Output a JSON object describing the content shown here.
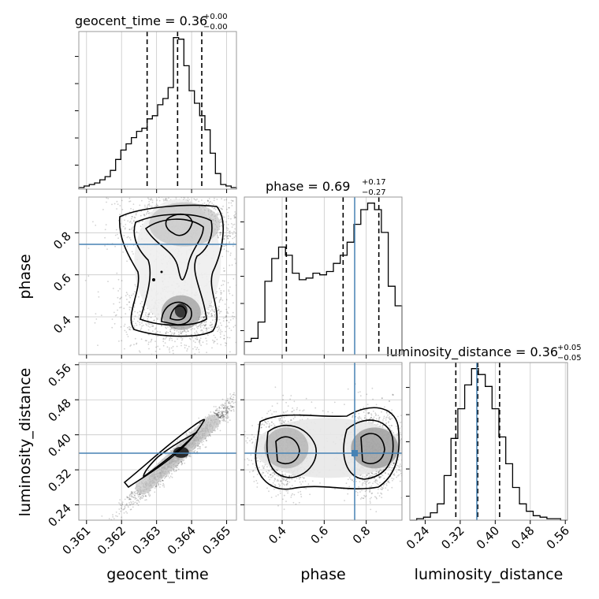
{
  "chart_data": {
    "type": "corner",
    "parameters": [
      "geocent_time",
      "phase",
      "luminosity_distance"
    ],
    "truth": {
      "phase": 0.745,
      "luminosity_distance": 0.358
    },
    "truth_color": "#4682b4",
    "axes": {
      "geocent_time": {
        "range": [
          0.36078,
          0.36528
        ],
        "ticks": [
          0.361,
          0.362,
          0.363,
          0.364,
          0.365
        ],
        "tick_labels": [
          "0.361",
          "0.362",
          "0.363",
          "0.364",
          "0.365"
        ]
      },
      "phase": {
        "range": [
          0.22,
          0.97
        ],
        "ticks": [
          0.4,
          0.6,
          0.8
        ],
        "tick_labels": [
          "0.4",
          "0.6",
          "0.8"
        ]
      },
      "luminosity_distance": {
        "range": [
          0.205,
          0.565
        ],
        "ticks": [
          0.24,
          0.32,
          0.4,
          0.48,
          0.56
        ],
        "tick_labels": [
          "0.24",
          "0.32",
          "0.40",
          "0.48",
          "0.56"
        ]
      }
    },
    "titles": [
      {
        "param": "geocent_time",
        "text": "geocent_time = 0.36",
        "plus": "+0.00",
        "minus": "−0.00"
      },
      {
        "param": "phase",
        "text": "phase = 0.69",
        "plus": "+0.17",
        "minus": "−0.27"
      },
      {
        "param": "luminosity_distance",
        "text": "luminosity_distance = 0.36",
        "plus": "+0.05",
        "minus": "−0.05"
      }
    ],
    "quantiles": {
      "geocent_time": [
        0.36273,
        0.3636,
        0.36429
      ],
      "phase": [
        0.42,
        0.69,
        0.86
      ],
      "luminosity_distance": [
        0.31,
        0.36,
        0.41
      ]
    },
    "histograms": {
      "geocent_time": [
        1,
        2,
        3,
        4,
        6,
        8,
        12,
        19,
        25,
        29,
        33,
        37,
        39,
        45,
        47,
        54,
        58,
        65,
        97,
        96,
        79,
        63,
        55,
        47,
        38,
        23,
        10,
        3,
        2,
        1
      ],
      "phase": [
        8,
        10,
        20,
        45,
        59,
        66,
        61,
        50,
        46,
        47,
        50,
        49,
        51,
        56,
        61,
        69,
        80,
        89,
        93,
        89,
        75,
        42,
        30
      ],
      "luminosity_distance": [
        0,
        1,
        2,
        5,
        11,
        30,
        55,
        75,
        91,
        102,
        98,
        90,
        75,
        56,
        38,
        22,
        11,
        6,
        3,
        2,
        1,
        1,
        0
      ]
    },
    "joint_modes": {
      "phase_vs_geocent_time": [
        {
          "x": 0.3637,
          "y": 0.43,
          "label": "dense lower mode"
        },
        {
          "x": 0.3637,
          "y": 0.84,
          "label": "upper mode"
        }
      ],
      "luminosity_distance_vs_geocent_time": [
        {
          "x": 0.3637,
          "y": 0.36,
          "label": "linear ridge center"
        }
      ],
      "luminosity_distance_vs_phase": [
        {
          "x": 0.42,
          "y": 0.37,
          "label": "left mode"
        },
        {
          "x": 0.83,
          "y": 0.37,
          "label": "right mode"
        }
      ]
    }
  }
}
